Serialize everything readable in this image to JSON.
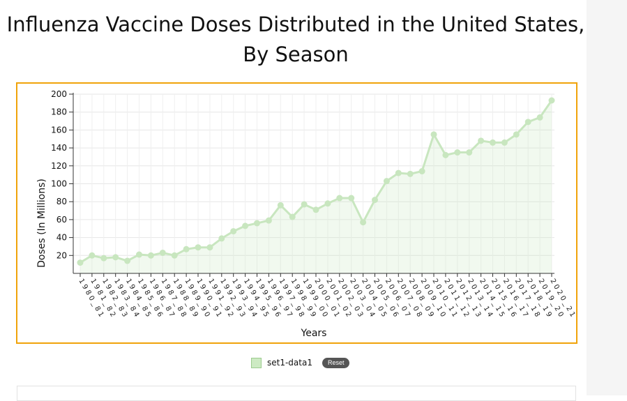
{
  "chart_data": {
    "type": "area",
    "title_line1": "Influenza Vaccine Doses Distributed in the United States,",
    "title_line2": "By Season",
    "xlabel": "Years",
    "ylabel": "Doses (In Millions)",
    "ylim": [
      0,
      200
    ],
    "y_ticks": [
      20,
      40,
      60,
      80,
      100,
      120,
      140,
      160,
      180,
      200
    ],
    "grid": true,
    "legend_position": "bottom-center",
    "categories": [
      "1980_81",
      "1981_82",
      "1982_83",
      "1983_84",
      "1984_85",
      "1985_86",
      "1986_87",
      "1987_88",
      "1988_89",
      "1989_90",
      "1990_91",
      "1991_92",
      "1992_93",
      "1993_94",
      "1994_95",
      "1995_96",
      "1996_97",
      "1997_98",
      "1998_99",
      "1999_00",
      "2000_01",
      "2001_02",
      "2002_03",
      "2003_04",
      "2004_05",
      "2005_06",
      "2006_07",
      "2007_08",
      "2008_09",
      "2009_10",
      "2010_11",
      "2011_12",
      "2012_13",
      "2013_14",
      "2014_15",
      "2015_16",
      "2016_17",
      "2017_18",
      "2018_19",
      "2019_20",
      "2020_21"
    ],
    "series": [
      {
        "name": "set1-data1",
        "color": "#c8e6bf",
        "values": [
          12,
          20,
          17,
          18,
          14,
          21,
          20,
          23,
          20,
          27,
          29,
          29,
          39,
          47,
          53,
          56,
          59,
          76,
          63,
          77,
          71,
          78,
          84,
          84,
          57,
          82,
          103,
          112,
          111,
          114,
          155,
          132,
          135,
          135,
          148,
          146,
          146,
          155,
          169,
          174,
          193
        ]
      }
    ]
  },
  "legend": {
    "label": "set1-data1",
    "reset_label": "Reset"
  }
}
